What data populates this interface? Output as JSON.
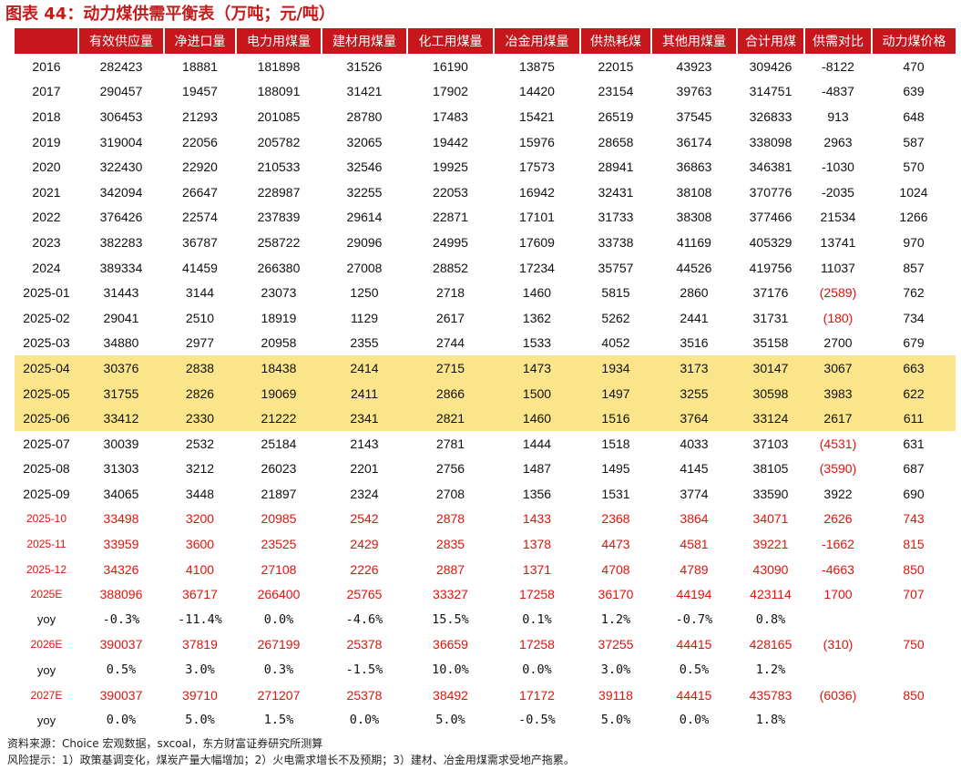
{
  "title": "图表 44：动力煤供需平衡表（万吨；元/吨）",
  "columns": [
    "",
    "有效供应量",
    "净进口量",
    "电力用煤量",
    "建材用煤量",
    "化工用煤量",
    "冶金用煤量",
    "供热耗煤",
    "其他用煤量",
    "合计用煤",
    "供需对比",
    "动力煤价格"
  ],
  "rows": [
    {
      "cells": [
        "2016",
        "282423",
        "18881",
        "181898",
        "31526",
        "16190",
        "13875",
        "22015",
        "43923",
        "309426",
        "-8122",
        "470"
      ]
    },
    {
      "cells": [
        "2017",
        "290457",
        "19457",
        "188091",
        "31421",
        "17902",
        "14420",
        "23154",
        "39763",
        "314751",
        "-4837",
        "639"
      ]
    },
    {
      "cells": [
        "2018",
        "306453",
        "21293",
        "201085",
        "28780",
        "17483",
        "15421",
        "26519",
        "37545",
        "326833",
        "913",
        "648"
      ]
    },
    {
      "cells": [
        "2019",
        "319004",
        "22056",
        "205782",
        "32065",
        "19442",
        "15976",
        "28658",
        "36174",
        "338098",
        "2963",
        "587"
      ]
    },
    {
      "cells": [
        "2020",
        "322430",
        "22920",
        "210533",
        "32546",
        "19925",
        "17573",
        "28941",
        "36863",
        "346381",
        "-1030",
        "570"
      ]
    },
    {
      "cells": [
        "2021",
        "342094",
        "26647",
        "228987",
        "32255",
        "22053",
        "16942",
        "32431",
        "38108",
        "370776",
        "-2035",
        "1024"
      ]
    },
    {
      "cells": [
        "2022",
        "376426",
        "22574",
        "237839",
        "29614",
        "22871",
        "17101",
        "31733",
        "38308",
        "377466",
        "21534",
        "1266"
      ]
    },
    {
      "cells": [
        "2023",
        "382283",
        "36787",
        "258722",
        "29096",
        "24995",
        "17609",
        "33738",
        "41169",
        "405329",
        "13741",
        "970"
      ]
    },
    {
      "cells": [
        "2024",
        "389334",
        "41459",
        "266380",
        "27008",
        "28852",
        "17234",
        "35757",
        "44526",
        "419756",
        "11037",
        "857"
      ]
    },
    {
      "cells": [
        "2025-01",
        "31443",
        "3144",
        "23073",
        "1250",
        "2718",
        "1460",
        "5815",
        "2860",
        "37176",
        "(2589)",
        "762"
      ],
      "neg": 10
    },
    {
      "cells": [
        "2025-02",
        "29041",
        "2510",
        "18919",
        "1129",
        "2617",
        "1362",
        "5262",
        "2441",
        "31731",
        "(180)",
        "734"
      ],
      "neg": 10
    },
    {
      "cells": [
        "2025-03",
        "34880",
        "2977",
        "20958",
        "2355",
        "2744",
        "1533",
        "4052",
        "3516",
        "35158",
        "2700",
        "679"
      ]
    },
    {
      "cells": [
        "2025-04",
        "30376",
        "2838",
        "18438",
        "2414",
        "2715",
        "1473",
        "1934",
        "3173",
        "30147",
        "3067",
        "663"
      ],
      "style": "hl"
    },
    {
      "cells": [
        "2025-05",
        "31755",
        "2826",
        "19069",
        "2411",
        "2866",
        "1500",
        "1497",
        "3255",
        "30598",
        "3983",
        "622"
      ],
      "style": "hl"
    },
    {
      "cells": [
        "2025-06",
        "33412",
        "2330",
        "21222",
        "2341",
        "2821",
        "1460",
        "1516",
        "3764",
        "33124",
        "2617",
        "611"
      ],
      "style": "hl"
    },
    {
      "cells": [
        "2025-07",
        "30039",
        "2532",
        "25184",
        "2143",
        "2781",
        "1444",
        "1518",
        "4033",
        "37103",
        "(4531)",
        "631"
      ],
      "neg": 10
    },
    {
      "cells": [
        "2025-08",
        "31303",
        "3212",
        "26023",
        "2201",
        "2756",
        "1487",
        "1495",
        "4145",
        "38105",
        "(3590)",
        "687"
      ],
      "neg": 10
    },
    {
      "cells": [
        "2025-09",
        "34065",
        "3448",
        "21897",
        "2324",
        "2708",
        "1356",
        "1531",
        "3774",
        "33590",
        "3922",
        "690"
      ]
    },
    {
      "cells": [
        "2025-10",
        "33498",
        "3200",
        "20985",
        "2542",
        "2878",
        "1433",
        "2368",
        "3864",
        "34071",
        "2626",
        "743"
      ],
      "style": "red"
    },
    {
      "cells": [
        "2025-11",
        "33959",
        "3600",
        "23525",
        "2429",
        "2835",
        "1378",
        "4473",
        "4581",
        "39221",
        "-1662",
        "815"
      ],
      "style": "red"
    },
    {
      "cells": [
        "2025-12",
        "34326",
        "4100",
        "27108",
        "2226",
        "2887",
        "1371",
        "4708",
        "4789",
        "43090",
        "-4663",
        "850"
      ],
      "style": "red"
    },
    {
      "cells": [
        "2025E",
        "388096",
        "36717",
        "266400",
        "25765",
        "33327",
        "17258",
        "36170",
        "44194",
        "423114",
        "1700",
        "707"
      ],
      "style": "red"
    },
    {
      "cells": [
        "yoy",
        "-0.3%",
        "-11.4%",
        "0.0%",
        "-4.6%",
        "15.5%",
        "0.1%",
        "1.2%",
        "-0.7%",
        "0.8%",
        "",
        ""
      ],
      "style": "yoy"
    },
    {
      "cells": [
        "2026E",
        "390037",
        "37819",
        "267199",
        "25378",
        "36659",
        "17258",
        "37255",
        "44415",
        "428165",
        "(310)",
        "750"
      ],
      "style": "red"
    },
    {
      "cells": [
        "yoy",
        "0.5%",
        "3.0%",
        "0.3%",
        "-1.5%",
        "10.0%",
        "0.0%",
        "3.0%",
        "0.5%",
        "1.2%",
        "",
        ""
      ],
      "style": "yoy"
    },
    {
      "cells": [
        "2027E",
        "390037",
        "39710",
        "271207",
        "25378",
        "38492",
        "17172",
        "39118",
        "44415",
        "435783",
        "(6036)",
        "850"
      ],
      "style": "red"
    },
    {
      "cells": [
        "yoy",
        "0.0%",
        "5.0%",
        "1.5%",
        "0.0%",
        "5.0%",
        "-0.5%",
        "5.0%",
        "0.0%",
        "1.8%",
        "",
        ""
      ],
      "style": "yoy"
    }
  ],
  "source": "资料来源：Choice 宏观数据，sxcoal，东方财富证券研究所测算",
  "risk": "风险提示：1）政策基调变化，煤炭产量大幅增加；2）火电需求增长不及预期；3）建材、冶金用煤需求受地产拖累。"
}
